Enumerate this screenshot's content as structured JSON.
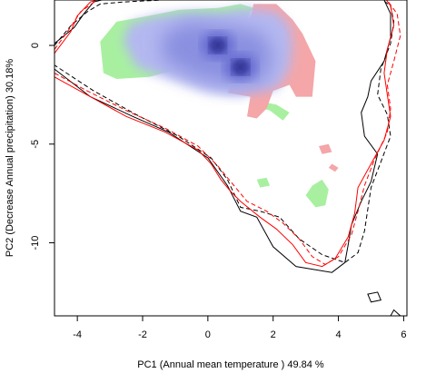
{
  "chart_data": {
    "type": "niche-density-plot",
    "xlabel": "PC1 (Annual mean temperature ) 49.84 %",
    "ylabel": "PC2 (Decrease Annual precipitation) 30.18%",
    "xlim": [
      -4.7,
      6.1
    ],
    "ylim": [
      -13.7,
      2.3
    ],
    "xticks": [
      -4,
      -2,
      0,
      2,
      4,
      6
    ],
    "yticks": [
      0,
      -5,
      -10
    ],
    "x_tick_labels": [
      "-4",
      "-2",
      "0",
      "2",
      "4",
      "6"
    ],
    "y_tick_labels": [
      "0",
      "-5",
      "-10"
    ],
    "grid": false,
    "legend": "none",
    "colors": {
      "overlap_density": "#3a3fb0",
      "density_light": "#b4b8f0",
      "species1_only": "#a8f0a0",
      "species2_only": "#f4a6a8",
      "envelope_species1": "#000000",
      "envelope_species2": "#ff0000"
    },
    "density_peaks": [
      {
        "x": 0.3,
        "y": 0.0
      },
      {
        "x": 1.0,
        "y": -1.1
      }
    ],
    "regions": {
      "green_main": [
        [
          -3.2,
          -1.4
        ],
        [
          -3.3,
          0.2
        ],
        [
          -2.8,
          1.2
        ],
        [
          -1.8,
          1.5
        ],
        [
          -0.9,
          1.8
        ],
        [
          0.3,
          1.9
        ],
        [
          1.0,
          2.1
        ],
        [
          1.4,
          1.9
        ],
        [
          0.9,
          0.6
        ],
        [
          -0.6,
          -1.1
        ],
        [
          -1.8,
          -1.6
        ],
        [
          -2.8,
          -1.7
        ]
      ],
      "green_blob1": [
        [
          1.7,
          -3.2
        ],
        [
          1.9,
          -3.3
        ],
        [
          2.3,
          -3.8
        ],
        [
          2.5,
          -3.4
        ],
        [
          2.1,
          -3.0
        ],
        [
          1.8,
          -2.9
        ]
      ],
      "green_blob2": [
        [
          3.2,
          -7.1
        ],
        [
          3.5,
          -6.8
        ],
        [
          3.7,
          -7.3
        ],
        [
          3.6,
          -8.1
        ],
        [
          3.3,
          -8.2
        ],
        [
          3.0,
          -7.6
        ]
      ],
      "green_blob3": [
        [
          1.5,
          -6.8
        ],
        [
          1.8,
          -6.7
        ],
        [
          1.9,
          -7.1
        ],
        [
          1.6,
          -7.2
        ]
      ],
      "red_main": [
        [
          1.4,
          2.1
        ],
        [
          2.1,
          2.1
        ],
        [
          2.6,
          1.3
        ],
        [
          2.9,
          0.6
        ],
        [
          3.3,
          -0.8
        ],
        [
          3.2,
          -2.6
        ],
        [
          2.7,
          -2.6
        ],
        [
          2.5,
          -2.0
        ],
        [
          2.0,
          -2.3
        ],
        [
          1.8,
          -3.2
        ],
        [
          1.5,
          -3.7
        ],
        [
          1.2,
          -3.6
        ],
        [
          1.3,
          -2.6
        ],
        [
          0.6,
          -2.4
        ],
        [
          1.0,
          -1.2
        ]
      ],
      "red_blob1": [
        [
          3.4,
          -5.1
        ],
        [
          3.7,
          -5.0
        ],
        [
          3.8,
          -5.4
        ],
        [
          3.5,
          -5.5
        ]
      ],
      "red_blob2": [
        [
          3.7,
          -6.2
        ],
        [
          3.8,
          -6.0
        ],
        [
          4.0,
          -6.2
        ],
        [
          3.9,
          -6.4
        ]
      ]
    },
    "envelopes": {
      "black_solid": [
        [
          -4.7,
          0.1
        ],
        [
          -4.1,
          0.9
        ],
        [
          -3.8,
          1.6
        ],
        [
          -3.5,
          2.2
        ],
        [
          -3.0,
          2.4
        ],
        [
          -1.7,
          2.5
        ],
        [
          -0.8,
          2.6
        ],
        [
          0.6,
          2.6
        ],
        [
          2.4,
          2.7
        ],
        [
          3.7,
          2.7
        ],
        [
          4.5,
          2.8
        ],
        [
          5.0,
          2.7
        ],
        [
          5.4,
          2.3
        ],
        [
          5.6,
          1.6
        ],
        [
          5.6,
          0.4
        ],
        [
          5.4,
          -0.8
        ],
        [
          5.0,
          -1.8
        ],
        [
          4.9,
          -2.6
        ],
        [
          4.7,
          -3.4
        ],
        [
          4.8,
          -4.6
        ],
        [
          5.2,
          -5.5
        ],
        [
          5.0,
          -6.9
        ],
        [
          4.7,
          -7.9
        ],
        [
          4.4,
          -9.1
        ],
        [
          4.3,
          -10.1
        ],
        [
          4.2,
          -11.0
        ],
        [
          3.8,
          -11.5
        ],
        [
          2.7,
          -11.2
        ],
        [
          2.0,
          -10.2
        ],
        [
          1.5,
          -8.7
        ],
        [
          1.0,
          -8.4
        ],
        [
          0.6,
          -7.1
        ],
        [
          0.0,
          -5.7
        ],
        [
          -1.2,
          -4.4
        ],
        [
          -2.3,
          -3.6
        ],
        [
          -3.6,
          -2.6
        ],
        [
          -4.7,
          -1.2
        ]
      ],
      "black_dashed": [
        [
          -4.7,
          0.0
        ],
        [
          -4.2,
          1.0
        ],
        [
          -3.7,
          1.7
        ],
        [
          -3.3,
          2.1
        ],
        [
          -2.6,
          2.2
        ],
        [
          -1.4,
          2.3
        ],
        [
          -0.7,
          2.5
        ],
        [
          0.7,
          2.5
        ],
        [
          2.5,
          2.5
        ],
        [
          3.8,
          2.6
        ],
        [
          4.6,
          2.6
        ],
        [
          5.2,
          2.5
        ],
        [
          5.6,
          2.0
        ],
        [
          5.7,
          1.2
        ],
        [
          5.6,
          0.1
        ],
        [
          5.3,
          -1.2
        ],
        [
          5.2,
          -2.5
        ],
        [
          5.5,
          -3.5
        ],
        [
          5.6,
          -4.6
        ],
        [
          5.3,
          -5.9
        ],
        [
          5.0,
          -7.2
        ],
        [
          4.9,
          -8.3
        ],
        [
          4.8,
          -9.4
        ],
        [
          4.6,
          -10.5
        ],
        [
          4.2,
          -11.0
        ],
        [
          3.5,
          -10.6
        ],
        [
          2.8,
          -9.8
        ],
        [
          2.2,
          -8.7
        ],
        [
          1.6,
          -8.4
        ],
        [
          1.0,
          -8.2
        ],
        [
          0.6,
          -6.8
        ],
        [
          0.1,
          -5.7
        ],
        [
          -0.9,
          -4.6
        ],
        [
          -2.2,
          -3.5
        ],
        [
          -3.5,
          -2.3
        ],
        [
          -4.7,
          -1.0
        ]
      ],
      "red_solid": [
        [
          -4.7,
          -0.4
        ],
        [
          -4.2,
          0.7
        ],
        [
          -4.0,
          1.5
        ],
        [
          -3.6,
          2.2
        ],
        [
          -3.0,
          2.5
        ],
        [
          -2.3,
          2.7
        ],
        [
          -1.3,
          2.4
        ],
        [
          -0.5,
          2.9
        ],
        [
          0.8,
          2.7
        ],
        [
          2.2,
          2.6
        ],
        [
          3.6,
          2.8
        ],
        [
          4.6,
          3.0
        ],
        [
          5.3,
          2.7
        ],
        [
          5.6,
          2.0
        ],
        [
          5.7,
          1.0
        ],
        [
          5.5,
          -0.2
        ],
        [
          5.4,
          -1.4
        ],
        [
          5.5,
          -2.5
        ],
        [
          5.6,
          -3.6
        ],
        [
          5.4,
          -4.8
        ],
        [
          5.0,
          -6.0
        ],
        [
          4.6,
          -7.2
        ],
        [
          4.5,
          -8.5
        ],
        [
          4.3,
          -9.7
        ],
        [
          3.9,
          -10.8
        ],
        [
          3.5,
          -11.2
        ],
        [
          3.0,
          -11.0
        ],
        [
          2.6,
          -10.1
        ],
        [
          2.1,
          -9.3
        ],
        [
          1.6,
          -8.7
        ],
        [
          1.0,
          -7.9
        ],
        [
          0.7,
          -7.4
        ],
        [
          0.4,
          -6.8
        ],
        [
          0.1,
          -6.0
        ],
        [
          -0.3,
          -5.3
        ],
        [
          -1.3,
          -4.4
        ],
        [
          -2.5,
          -3.6
        ],
        [
          -3.6,
          -2.6
        ],
        [
          -4.7,
          -1.6
        ]
      ],
      "red_dashed": [
        [
          -4.7,
          -0.2
        ],
        [
          -4.3,
          0.7
        ],
        [
          -3.9,
          1.7
        ],
        [
          -3.4,
          2.3
        ],
        [
          -2.7,
          2.5
        ],
        [
          -1.7,
          2.6
        ],
        [
          -0.6,
          2.8
        ],
        [
          0.9,
          2.6
        ],
        [
          2.5,
          2.6
        ],
        [
          3.8,
          2.7
        ],
        [
          4.8,
          2.9
        ],
        [
          5.4,
          2.5
        ],
        [
          5.8,
          1.6
        ],
        [
          5.9,
          0.5
        ],
        [
          5.7,
          -0.8
        ],
        [
          5.5,
          -2.0
        ],
        [
          5.6,
          -3.2
        ],
        [
          5.5,
          -4.4
        ],
        [
          5.1,
          -5.8
        ],
        [
          4.8,
          -7.1
        ],
        [
          4.6,
          -8.4
        ],
        [
          4.4,
          -9.6
        ],
        [
          4.0,
          -10.7
        ],
        [
          3.6,
          -11.1
        ],
        [
          3.2,
          -10.7
        ],
        [
          2.8,
          -9.8
        ],
        [
          2.3,
          -9.0
        ],
        [
          1.8,
          -8.4
        ],
        [
          1.2,
          -7.9
        ],
        [
          0.8,
          -7.1
        ],
        [
          0.3,
          -6.1
        ],
        [
          -0.3,
          -5.1
        ],
        [
          -1.3,
          -4.2
        ],
        [
          -2.5,
          -3.3
        ],
        [
          -3.7,
          -2.3
        ],
        [
          -4.7,
          -1.4
        ]
      ],
      "small_loop_black": [
        [
          4.9,
          -12.6
        ],
        [
          5.2,
          -12.5
        ],
        [
          5.3,
          -12.9
        ],
        [
          5.0,
          -13.0
        ]
      ],
      "corner_black": [
        [
          5.6,
          -13.7
        ],
        [
          5.7,
          -13.4
        ],
        [
          5.9,
          -13.7
        ]
      ]
    }
  }
}
